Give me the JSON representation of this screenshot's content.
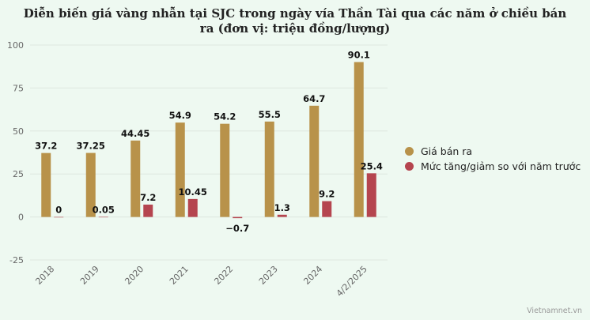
{
  "chart_data": {
    "type": "bar",
    "title": "Diễn biến giá vàng nhẫn tại SJC trong ngày vía Thần Tài qua các năm ở chiều bán ra (đơn vị: triệu đồng/lượng)",
    "categories": [
      "2018",
      "2019",
      "2020",
      "2021",
      "2022",
      "2023",
      "2024",
      "4/2/2025"
    ],
    "series": [
      {
        "name": "Giá bán ra",
        "color": "#b8924a",
        "values": [
          37.2,
          37.25,
          44.45,
          54.9,
          54.2,
          55.5,
          64.7,
          90.1
        ],
        "labels": [
          "37.2",
          "37.25",
          "44.45",
          "54.9",
          "54.2",
          "55.5",
          "64.7",
          "90.1"
        ]
      },
      {
        "name": "Mức tăng/giảm so với năm trước",
        "color": "#b5454f",
        "values": [
          0,
          0.05,
          7.2,
          10.45,
          -0.7,
          1.3,
          9.2,
          25.4
        ],
        "labels": [
          "0",
          "0.05",
          "7.2",
          "10.45",
          "−0.7",
          "1.3",
          "9.2",
          "25.4"
        ]
      }
    ],
    "ylim": [
      -25,
      100
    ],
    "yticks": [
      -25,
      0,
      25,
      50,
      75,
      100
    ],
    "grid": true,
    "legend_position": "right",
    "xlabel": "",
    "ylabel": ""
  },
  "credit": "Vietnamnet.vn"
}
